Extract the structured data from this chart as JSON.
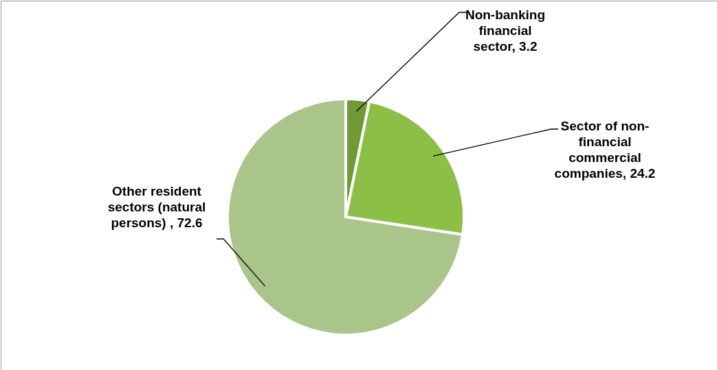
{
  "chart_data": {
    "type": "pie",
    "categories": [
      "Non-banking financial sector",
      "Sector of non-financial commercial companies",
      "Other resident sectors (natural persons) "
    ],
    "values": [
      3.2,
      24.2,
      72.6
    ],
    "colors": [
      "#6f9a35",
      "#8cbf45",
      "#aac58a"
    ],
    "value_labels": [
      ", 3.2",
      ", 24.2",
      ", 72.6"
    ],
    "legend": false
  }
}
